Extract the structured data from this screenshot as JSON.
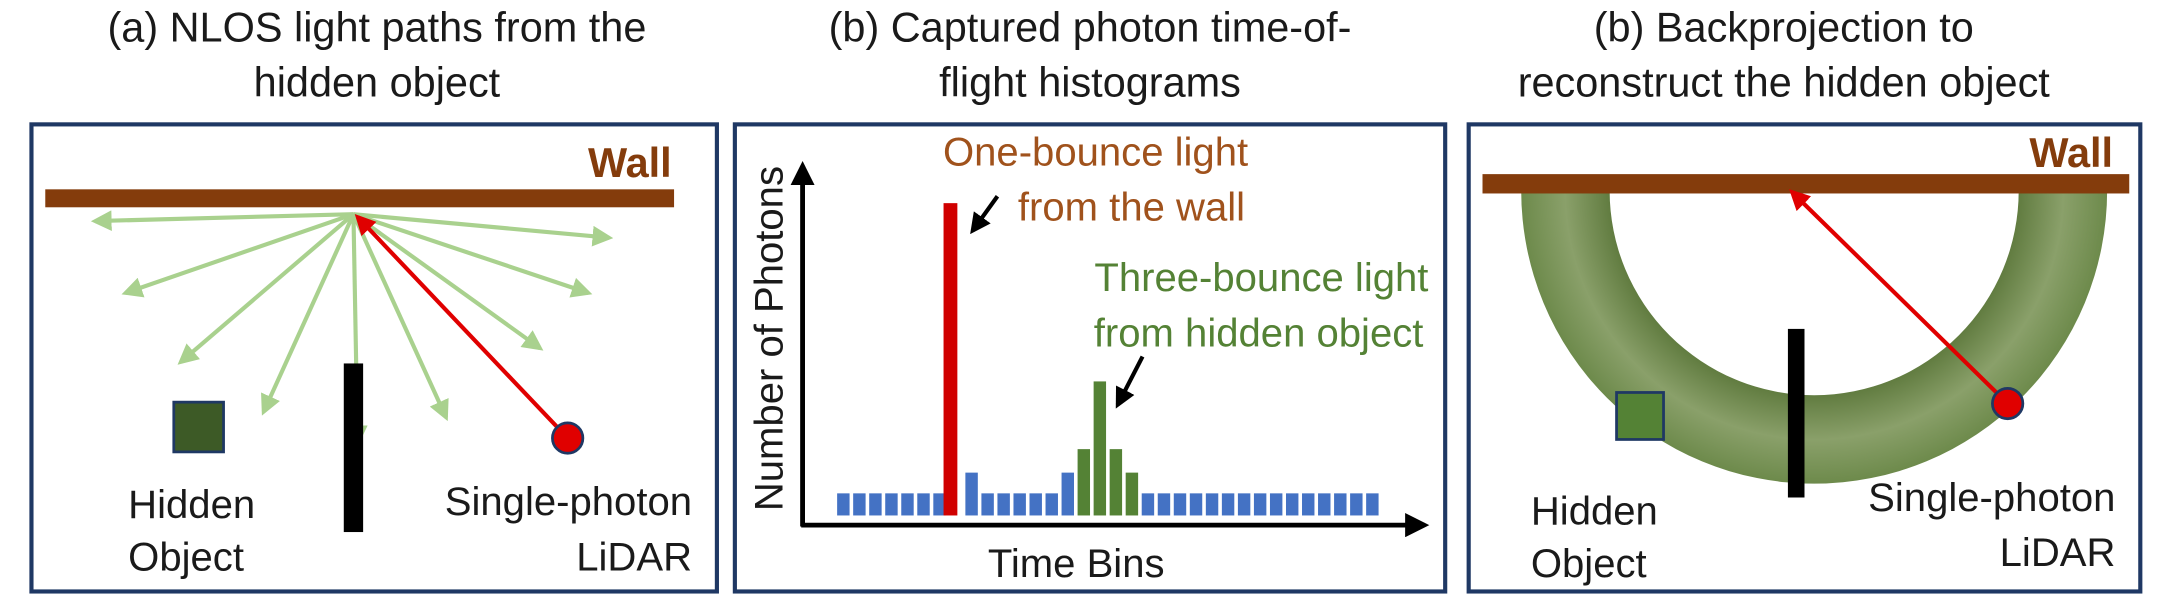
{
  "panels": [
    {
      "title": [
        "(a) NLOS light paths from the",
        "hidden object"
      ],
      "wall": "Wall",
      "object": [
        "Hidden",
        "Object"
      ],
      "lidar": [
        "Single-photon",
        "LiDAR"
      ]
    },
    {
      "title": [
        "(b) Captured photon time-of-",
        "flight histograms"
      ],
      "y_axis": "Number of Photons",
      "x_axis": "Time Bins",
      "one_bounce": [
        "One-bounce light",
        "from the wall"
      ],
      "three_bounce": [
        "Three-bounce light",
        "from hidden object"
      ]
    },
    {
      "title": [
        "(b) Backprojection to",
        "reconstruct the hidden object"
      ],
      "wall": "Wall",
      "object": [
        "Hidden",
        "Object"
      ],
      "lidar": [
        "Single-photon",
        "LiDAR"
      ]
    }
  ]
}
